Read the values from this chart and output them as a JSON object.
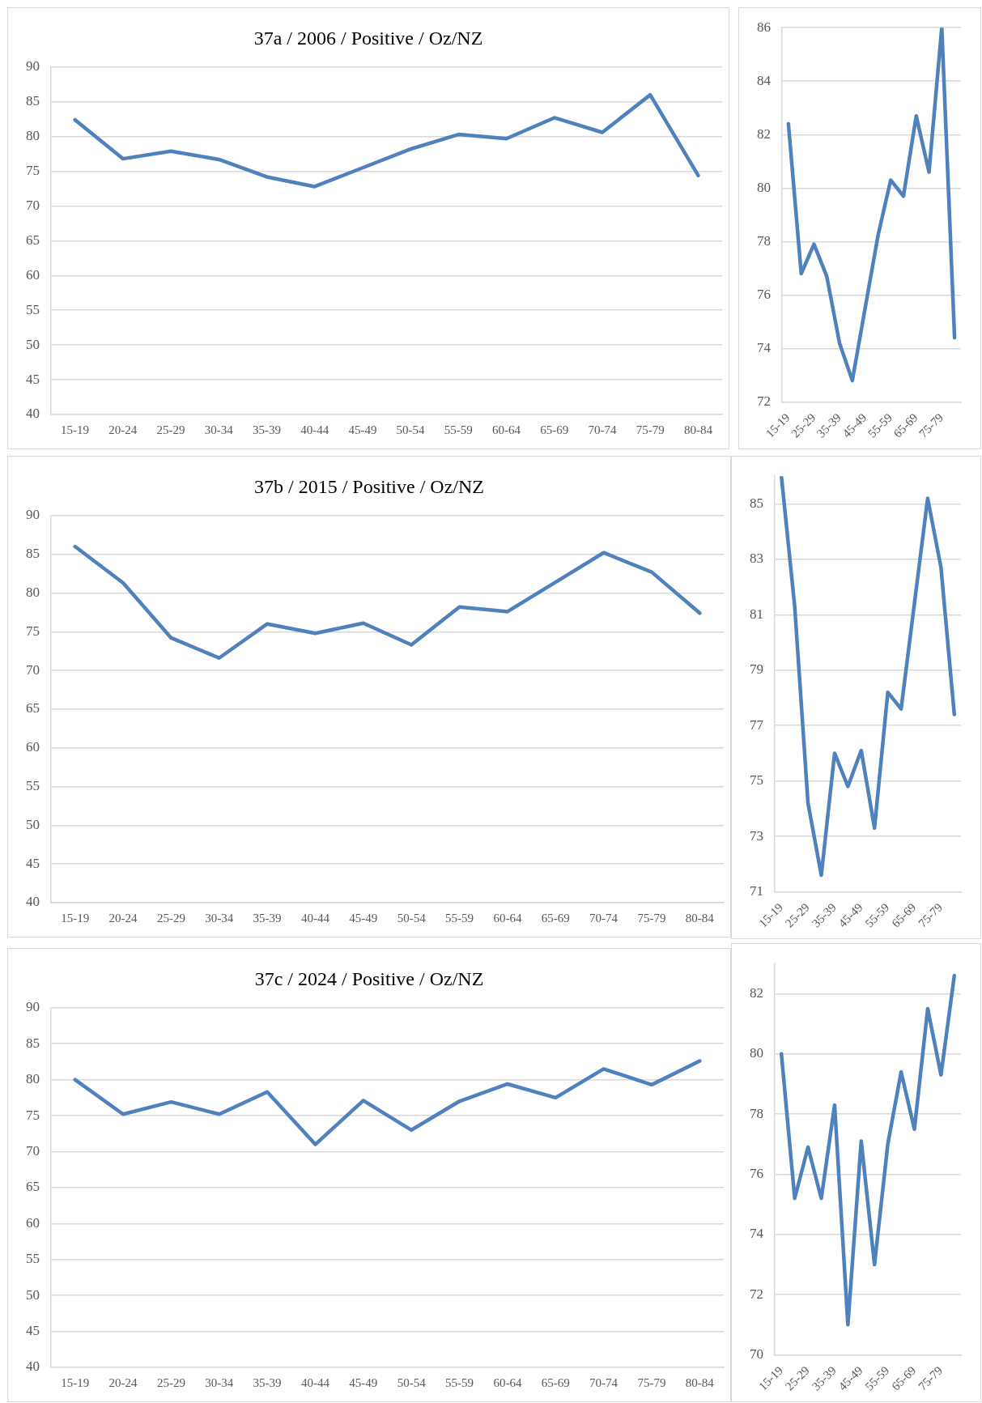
{
  "chart_data": [
    {
      "type": "line",
      "title": "37a / 2006 / Positive / Oz/NZ",
      "categories": [
        "15-19",
        "20-24",
        "25-29",
        "30-34",
        "35-39",
        "40-44",
        "45-49",
        "50-54",
        "55-59",
        "60-64",
        "65-69",
        "70-74",
        "75-79",
        "80-84"
      ],
      "series": [
        {
          "color": "#4f81bd",
          "values": [
            82.4,
            76.8,
            77.9,
            76.7,
            74.2,
            72.8,
            75.5,
            78.2,
            80.3,
            79.7,
            82.7,
            80.6,
            86,
            74.4
          ]
        }
      ],
      "ylim": [
        40,
        90
      ],
      "yticks": [
        40,
        45,
        50,
        55,
        60,
        65,
        70,
        75,
        80,
        85,
        90
      ],
      "grid": "y",
      "marker": "none"
    },
    {
      "type": "line",
      "categories": [
        "15-19",
        null,
        "25-29",
        null,
        "35-39",
        null,
        "45-49",
        null,
        "55-59",
        null,
        "65-69",
        null,
        "75-79",
        null
      ],
      "series": [
        {
          "color": "#4f81bd",
          "values": [
            82.4,
            76.8,
            77.9,
            76.7,
            74.2,
            72.8,
            75.5,
            78.2,
            80.3,
            79.7,
            82.7,
            80.6,
            86,
            74.4
          ]
        }
      ],
      "ylim": [
        72,
        86
      ],
      "yticks": [
        72,
        74,
        76,
        78,
        80,
        82,
        84,
        86
      ],
      "grid": "y",
      "marker": "none"
    },
    {
      "type": "line",
      "title": "37b / 2015 / Positive / Oz/NZ",
      "categories": [
        "15-19",
        "20-24",
        "25-29",
        "30-34",
        "35-39",
        "40-44",
        "45-49",
        "50-54",
        "55-59",
        "60-64",
        "65-69",
        "70-74",
        "75-79",
        "80-84"
      ],
      "series": [
        {
          "color": "#4f81bd",
          "values": [
            86,
            81.3,
            74.2,
            71.6,
            76,
            74.8,
            76.1,
            73.3,
            78.2,
            77.6,
            81.4,
            85.2,
            82.7,
            77.4
          ]
        }
      ],
      "ylim": [
        40,
        90
      ],
      "yticks": [
        40,
        45,
        50,
        55,
        60,
        65,
        70,
        75,
        80,
        85,
        90
      ],
      "grid": "y",
      "marker": "none"
    },
    {
      "type": "line",
      "categories": [
        "15-19",
        null,
        "25-29",
        null,
        "35-39",
        null,
        "45-49",
        null,
        "55-59",
        null,
        "65-69",
        null,
        "75-79",
        null
      ],
      "series": [
        {
          "color": "#4f81bd",
          "values": [
            86,
            81.3,
            74.2,
            71.6,
            76,
            74.8,
            76.1,
            73.3,
            78.2,
            77.6,
            81.4,
            85.2,
            82.7,
            77.4
          ]
        }
      ],
      "ylim": [
        71,
        86
      ],
      "yticks": [
        71,
        73,
        75,
        77,
        79,
        81,
        83,
        85
      ],
      "grid": "y",
      "marker": "none"
    },
    {
      "type": "line",
      "title": "37c / 2024 / Positive / Oz/NZ",
      "categories": [
        "15-19",
        "20-24",
        "25-29",
        "30-34",
        "35-39",
        "40-44",
        "45-49",
        "50-54",
        "55-59",
        "60-64",
        "65-69",
        "70-74",
        "75-79",
        "80-84"
      ],
      "series": [
        {
          "color": "#4f81bd",
          "values": [
            80,
            75.2,
            76.9,
            75.2,
            78.3,
            71,
            77.1,
            73,
            77,
            79.4,
            77.5,
            81.5,
            79.3,
            82.6
          ]
        }
      ],
      "ylim": [
        40,
        90
      ],
      "yticks": [
        40,
        45,
        50,
        55,
        60,
        65,
        70,
        75,
        80,
        85,
        90
      ],
      "grid": "y",
      "marker": "none"
    },
    {
      "type": "line",
      "categories": [
        "15-19",
        null,
        "25-29",
        null,
        "35-39",
        null,
        "45-49",
        null,
        "55-59",
        null,
        "65-69",
        null,
        "75-79",
        null
      ],
      "series": [
        {
          "color": "#4f81bd",
          "values": [
            80,
            75.2,
            76.9,
            75.2,
            78.3,
            71,
            77.1,
            73,
            77,
            79.4,
            77.5,
            81.5,
            79.3,
            82.6
          ]
        }
      ],
      "ylim": [
        70,
        83
      ],
      "yticks": [
        70,
        72,
        74,
        76,
        78,
        80,
        82
      ],
      "grid": "y",
      "marker": "none"
    }
  ]
}
